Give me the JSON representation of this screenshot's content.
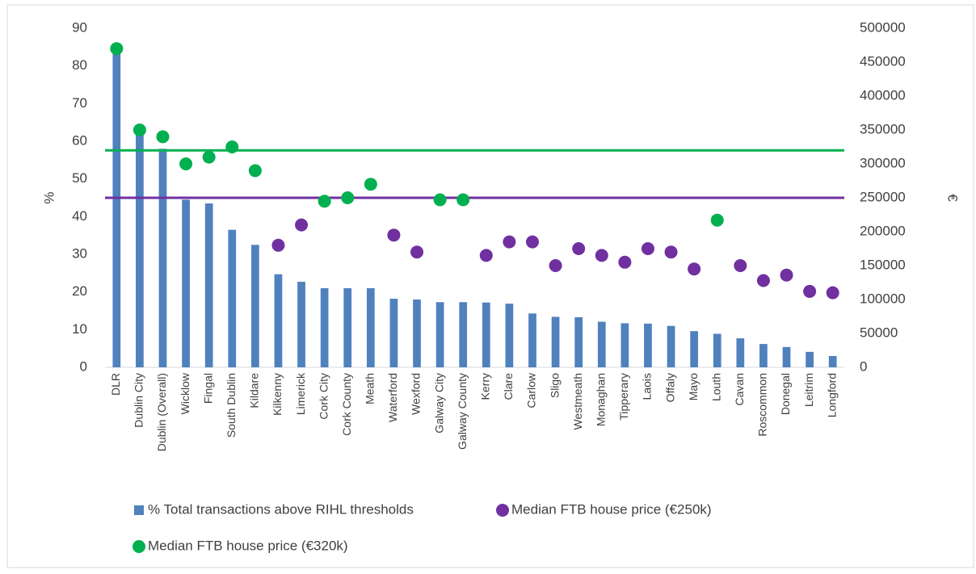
{
  "chart_data": {
    "type": "bar",
    "categories": [
      "DLR",
      "Dublin City",
      "Dublin (Overall)",
      "Wicklow",
      "Fingal",
      "South Dublin",
      "Kildare",
      "Kilkenny",
      "Limerick",
      "Cork City",
      "Cork County",
      "Meath",
      "Waterford",
      "Wexford",
      "Galway City",
      "Galway County",
      "Kerry",
      "Clare",
      "Carlow",
      "Sligo",
      "Westmeath",
      "Monaghan",
      "Tipperary",
      "Laois",
      "Offaly",
      "Mayo",
      "Louth",
      "Cavan",
      "Roscommon",
      "Donegal",
      "Leitrim",
      "Longford"
    ],
    "series": [
      {
        "name": "% Total transactions above RIHL thresholds",
        "type": "bar",
        "color": "#4f81bd",
        "values": [
          85,
          63,
          58,
          44.5,
          43.5,
          36.5,
          32.5,
          24.7,
          22.7,
          21,
          21,
          21,
          18.2,
          18,
          17.3,
          17.3,
          17.2,
          16.9,
          14.3,
          13.4,
          13.3,
          12.1,
          11.7,
          11.6,
          11,
          9.6,
          8.9,
          7.7,
          6.2,
          5.4,
          4.1,
          3
        ]
      },
      {
        "name": "Median FTB house price (€250k)",
        "type": "scatter",
        "axis": "y2",
        "color": "#7030a0",
        "values": [
          null,
          null,
          null,
          null,
          null,
          null,
          null,
          180000,
          210000,
          null,
          null,
          null,
          195000,
          170000,
          null,
          null,
          165000,
          185000,
          185000,
          150000,
          175000,
          165000,
          155000,
          175000,
          170000,
          145000,
          null,
          150000,
          128000,
          136000,
          112000,
          110000
        ]
      },
      {
        "name": "Median FTB house price (€320k)",
        "type": "scatter",
        "axis": "y2",
        "color": "#00b050",
        "values": [
          470000,
          350000,
          340000,
          300000,
          310000,
          325000,
          290000,
          null,
          null,
          245000,
          250000,
          270000,
          null,
          null,
          247000,
          247000,
          null,
          null,
          null,
          null,
          null,
          null,
          null,
          null,
          null,
          null,
          217000,
          null,
          null,
          null,
          null,
          null
        ]
      }
    ],
    "reference_lines": [
      {
        "value": 320000,
        "axis": "y2",
        "color": "#00b050"
      },
      {
        "value": 250000,
        "axis": "y2",
        "color": "#7030a0"
      }
    ],
    "ylabel": "%",
    "y2label": "€",
    "ylim": [
      0,
      90
    ],
    "yticks": [
      0,
      10,
      20,
      30,
      40,
      50,
      60,
      70,
      80,
      90
    ],
    "y2lim": [
      0,
      500000
    ],
    "y2ticks": [
      0,
      50000,
      100000,
      150000,
      200000,
      250000,
      300000,
      350000,
      400000,
      450000,
      500000
    ],
    "grid": false
  }
}
